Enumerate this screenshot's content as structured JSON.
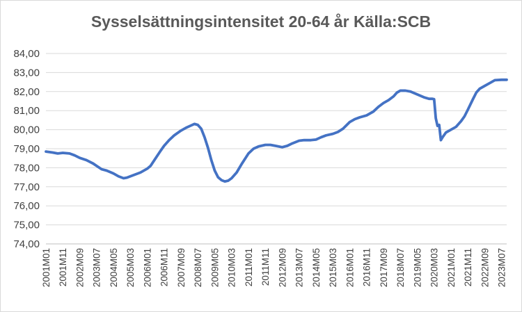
{
  "chart_data": {
    "type": "line",
    "title": "Sysselsättningsintensitet 20-64 år Källa:SCB",
    "xlabel": "",
    "ylabel": "",
    "ylim": [
      74,
      84
    ],
    "y_ticks": [
      "74,00",
      "75,00",
      "76,00",
      "77,00",
      "78,00",
      "79,00",
      "80,00",
      "81,00",
      "82,00",
      "83,00",
      "84,00"
    ],
    "x_ticks": [
      "2001M01",
      "2001M11",
      "2002M09",
      "2003M07",
      "2004M05",
      "2005M03",
      "2006M01",
      "2006M11",
      "2007M09",
      "2008M07",
      "2009M05",
      "2010M03",
      "2011M01",
      "2011M11",
      "2012M09",
      "2013M07",
      "2014M05",
      "2015M03",
      "2016M01",
      "2016M11",
      "2017M09",
      "2018M07",
      "2019M05",
      "2020M03",
      "2021M01",
      "2021M11",
      "2022M09",
      "2023M07"
    ],
    "grid": "horizontal",
    "line_color": "#4472c4",
    "series": [
      {
        "points": [
          [
            "2001M01",
            78.85
          ],
          [
            "2001M05",
            78.8
          ],
          [
            "2001M08",
            78.75
          ],
          [
            "2001M11",
            78.78
          ],
          [
            "2002M03",
            78.75
          ],
          [
            "2002M06",
            78.65
          ],
          [
            "2002M09",
            78.52
          ],
          [
            "2003M01",
            78.4
          ],
          [
            "2003M05",
            78.22
          ],
          [
            "2003M07",
            78.1
          ],
          [
            "2003M10",
            77.92
          ],
          [
            "2004M01",
            77.85
          ],
          [
            "2004M05",
            77.7
          ],
          [
            "2004M08",
            77.55
          ],
          [
            "2004M11",
            77.45
          ],
          [
            "2005M01",
            77.48
          ],
          [
            "2005M03",
            77.55
          ],
          [
            "2005M06",
            77.65
          ],
          [
            "2005M09",
            77.75
          ],
          [
            "2005M11",
            77.85
          ],
          [
            "2006M01",
            77.95
          ],
          [
            "2006M03",
            78.1
          ],
          [
            "2006M06",
            78.5
          ],
          [
            "2006M09",
            78.9
          ],
          [
            "2006M11",
            79.15
          ],
          [
            "2007M02",
            79.45
          ],
          [
            "2007M05",
            79.7
          ],
          [
            "2007M09",
            79.95
          ],
          [
            "2007M12",
            80.1
          ],
          [
            "2008M03",
            80.22
          ],
          [
            "2008M05",
            80.3
          ],
          [
            "2008M07",
            80.25
          ],
          [
            "2008M09",
            80.05
          ],
          [
            "2008M11",
            79.6
          ],
          [
            "2009M01",
            79.05
          ],
          [
            "2009M03",
            78.4
          ],
          [
            "2009M05",
            77.85
          ],
          [
            "2009M07",
            77.5
          ],
          [
            "2009M09",
            77.35
          ],
          [
            "2009M11",
            77.28
          ],
          [
            "2010M01",
            77.32
          ],
          [
            "2010M03",
            77.45
          ],
          [
            "2010M06",
            77.75
          ],
          [
            "2010M09",
            78.2
          ],
          [
            "2011M01",
            78.75
          ],
          [
            "2011M04",
            79.0
          ],
          [
            "2011M07",
            79.12
          ],
          [
            "2011M11",
            79.2
          ],
          [
            "2012M02",
            79.2
          ],
          [
            "2012M05",
            79.15
          ],
          [
            "2012M09",
            79.08
          ],
          [
            "2012M12",
            79.15
          ],
          [
            "2013M03",
            79.28
          ],
          [
            "2013M07",
            79.42
          ],
          [
            "2013M10",
            79.45
          ],
          [
            "2014M02",
            79.45
          ],
          [
            "2014M05",
            79.48
          ],
          [
            "2014M08",
            79.6
          ],
          [
            "2014M11",
            79.7
          ],
          [
            "2015M03",
            79.78
          ],
          [
            "2015M06",
            79.88
          ],
          [
            "2015M09",
            80.05
          ],
          [
            "2016M01",
            80.4
          ],
          [
            "2016M04",
            80.55
          ],
          [
            "2016M07",
            80.65
          ],
          [
            "2016M11",
            80.75
          ],
          [
            "2017M03",
            80.95
          ],
          [
            "2017M06",
            81.2
          ],
          [
            "2017M09",
            81.4
          ],
          [
            "2017M12",
            81.55
          ],
          [
            "2018M03",
            81.75
          ],
          [
            "2018M05",
            81.95
          ],
          [
            "2018M07",
            82.05
          ],
          [
            "2018M10",
            82.05
          ],
          [
            "2019M01",
            82.0
          ],
          [
            "2019M05",
            81.85
          ],
          [
            "2019M09",
            81.7
          ],
          [
            "2019M12",
            81.62
          ],
          [
            "2020M02",
            81.62
          ],
          [
            "2020M03",
            81.6
          ],
          [
            "2020M04",
            80.6
          ],
          [
            "2020M05",
            80.2
          ],
          [
            "2020M06",
            80.25
          ],
          [
            "2020M07",
            79.45
          ],
          [
            "2020M08",
            79.6
          ],
          [
            "2020M10",
            79.85
          ],
          [
            "2021M01",
            80.0
          ],
          [
            "2021M04",
            80.15
          ],
          [
            "2021M07",
            80.45
          ],
          [
            "2021M09",
            80.7
          ],
          [
            "2021M11",
            81.05
          ],
          [
            "2022M02",
            81.6
          ],
          [
            "2022M04",
            81.95
          ],
          [
            "2022M06",
            82.15
          ],
          [
            "2022M09",
            82.3
          ],
          [
            "2022M12",
            82.45
          ],
          [
            "2023M03",
            82.6
          ],
          [
            "2023M07",
            82.62
          ],
          [
            "2023M10",
            82.62
          ]
        ]
      }
    ]
  }
}
